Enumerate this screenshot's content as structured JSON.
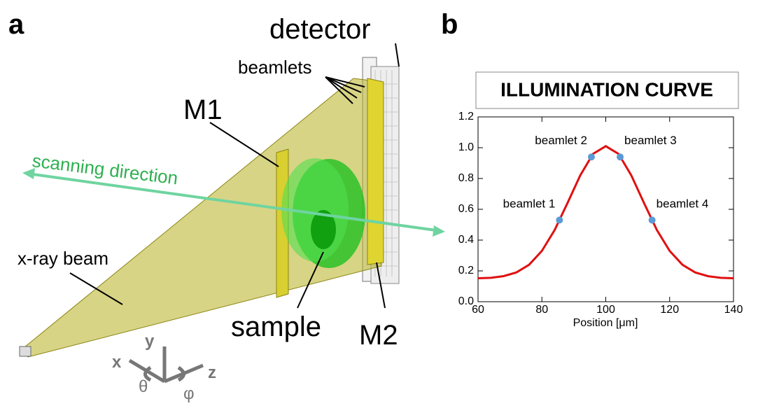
{
  "diagram": {
    "panel_label": "a",
    "detector": "detector",
    "beamlets": "beamlets",
    "m1": "M1",
    "scanning": "scanning direction",
    "beam": "x-ray beam",
    "sample": "sample",
    "m2": "M2",
    "axis_y": "y",
    "axis_x": "x",
    "axis_z": "z",
    "theta": "θ",
    "phi": "φ"
  },
  "chart_data": {
    "type": "line",
    "panel_label": "b",
    "title": "ILLUMINATION CURVE",
    "x_label": "Position [μm]",
    "x": [
      60,
      64,
      68,
      72,
      76,
      80,
      84,
      88,
      92,
      96,
      100,
      104,
      108,
      112,
      116,
      120,
      124,
      128,
      132,
      136,
      140
    ],
    "values": [
      0.152,
      0.155,
      0.166,
      0.19,
      0.24,
      0.33,
      0.466,
      0.64,
      0.82,
      0.96,
      1.01,
      0.96,
      0.82,
      0.64,
      0.466,
      0.33,
      0.24,
      0.19,
      0.166,
      0.155,
      0.152
    ],
    "color": "#e01010",
    "markers": [
      {
        "label": "beamlet 1",
        "x": 85.5,
        "y": 0.53
      },
      {
        "label": "beamlet 2",
        "x": 95.5,
        "y": 0.94
      },
      {
        "label": "beamlet 3",
        "x": 104.5,
        "y": 0.94
      },
      {
        "label": "beamlet 4",
        "x": 114.5,
        "y": 0.53
      }
    ],
    "marker_color": "#5b9bd5",
    "xlim": [
      60,
      140
    ],
    "ylim": [
      0,
      1.2
    ],
    "xticks": [
      60,
      80,
      100,
      120,
      140
    ],
    "yticks": [
      {
        "value": 0,
        "label": "0.0"
      },
      0.2,
      0.4,
      0.6,
      0.8,
      {
        "value": 1,
        "label": "1.0"
      },
      1.2
    ]
  }
}
